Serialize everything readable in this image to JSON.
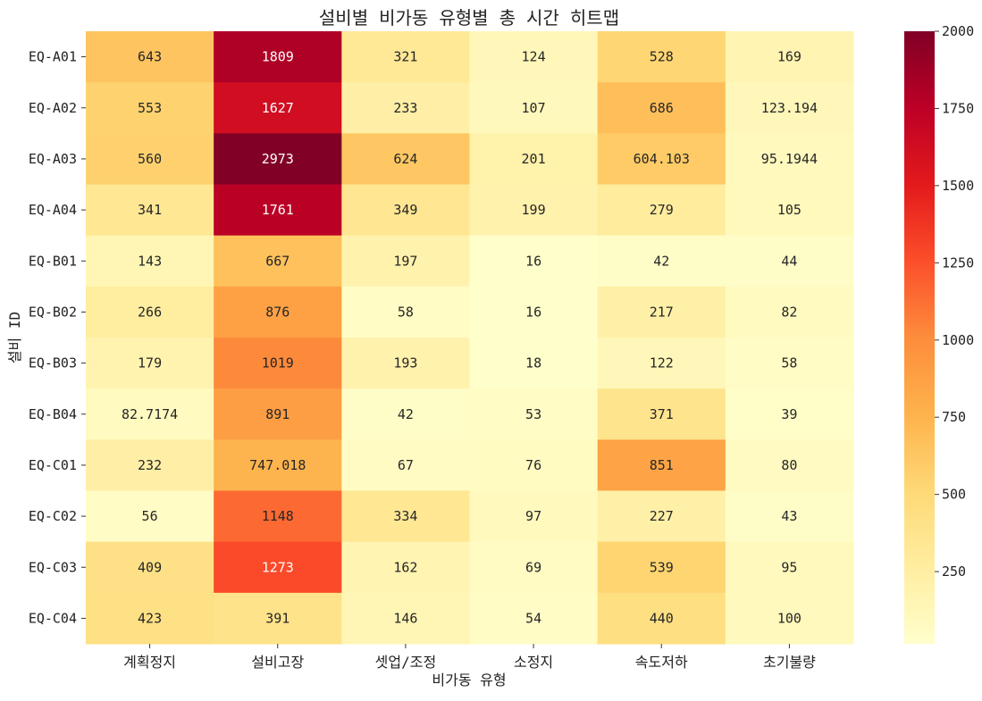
{
  "chart_data": {
    "type": "heatmap",
    "title": "설비별 비가동 유형별 총 시간 히트맵",
    "xlabel": "비가동 유형",
    "ylabel": "설비 ID",
    "x_categories": [
      "계획정지",
      "설비고장",
      "셋업/조정",
      "소정지",
      "속도저하",
      "초기불량"
    ],
    "y_categories": [
      "EQ-A01",
      "EQ-A02",
      "EQ-A03",
      "EQ-A04",
      "EQ-B01",
      "EQ-B02",
      "EQ-B03",
      "EQ-B04",
      "EQ-C01",
      "EQ-C02",
      "EQ-C03",
      "EQ-C04"
    ],
    "values": [
      [
        643,
        1809,
        321,
        124,
        528,
        169
      ],
      [
        553,
        1627,
        233,
        107,
        686,
        123.194
      ],
      [
        560,
        2973,
        624,
        201,
        604.103,
        95.1944
      ],
      [
        341,
        1761,
        349,
        199,
        279,
        105
      ],
      [
        143,
        667,
        197,
        16,
        42,
        44
      ],
      [
        266,
        876,
        58,
        16,
        217,
        82
      ],
      [
        179,
        1019,
        193,
        18,
        122,
        58
      ],
      [
        82.7174,
        891,
        42,
        53,
        371,
        39
      ],
      [
        232,
        747.018,
        67,
        76,
        851,
        80
      ],
      [
        56,
        1148,
        334,
        97,
        227,
        43
      ],
      [
        409,
        1273,
        162,
        69,
        539,
        95
      ],
      [
        423,
        391,
        146,
        54,
        440,
        100
      ]
    ],
    "labels": [
      [
        "643",
        "1809",
        "321",
        "124",
        "528",
        "169"
      ],
      [
        "553",
        "1627",
        "233",
        "107",
        "686",
        "123.194"
      ],
      [
        "560",
        "2973",
        "624",
        "201",
        "604.103",
        "95.1944"
      ],
      [
        "341",
        "1761",
        "349",
        "199",
        "279",
        "105"
      ],
      [
        "143",
        "667",
        "197",
        "16",
        "42",
        "44"
      ],
      [
        "266",
        "876",
        "58",
        "16",
        "217",
        "82"
      ],
      [
        "179",
        "1019",
        "193",
        "18",
        "122",
        "58"
      ],
      [
        "82.7174",
        "891",
        "42",
        "53",
        "371",
        "39"
      ],
      [
        "232",
        "747.018",
        "67",
        "76",
        "851",
        "80"
      ],
      [
        "56",
        "1148",
        "334",
        "97",
        "227",
        "43"
      ],
      [
        "409",
        "1273",
        "162",
        "69",
        "539",
        "95"
      ],
      [
        "423",
        "391",
        "146",
        "54",
        "440",
        "100"
      ]
    ],
    "colormap": "YlOrRd",
    "colormap_stops": [
      "#ffffcc",
      "#ffeda0",
      "#fed976",
      "#feb24c",
      "#fd8d3c",
      "#fc4e2a",
      "#e31a1c",
      "#bd0026",
      "#800026"
    ],
    "vmin": 16,
    "vmax": 2000,
    "colorbar_ticks": [
      250,
      500,
      750,
      1000,
      1250,
      1500,
      1750,
      2000
    ],
    "colorbar_tick_labels": [
      "250",
      "500",
      "750",
      "1000",
      "1250",
      "1500",
      "1750",
      "2000"
    ],
    "grid": false,
    "colorbar_placement": "right"
  }
}
